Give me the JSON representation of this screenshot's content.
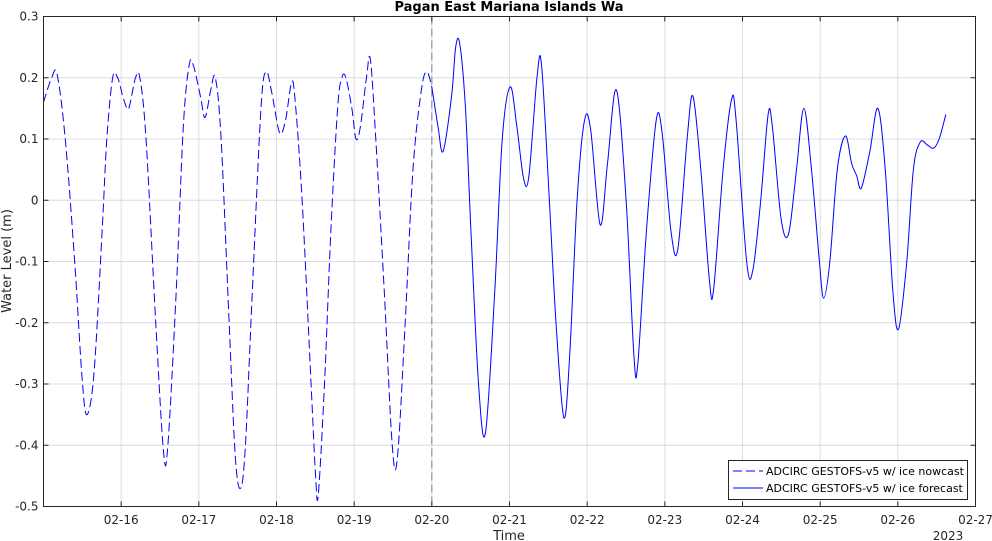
{
  "chart_data": {
    "type": "line",
    "title": "Pagan East Mariana Islands Wa",
    "xlabel": "Time",
    "ylabel": "Water Level (m)",
    "year_label": "2023",
    "xlim": [
      "2023-02-15 00:00",
      "2023-02-27 00:00"
    ],
    "ylim": [
      -0.5,
      0.3
    ],
    "x_tick_labels": [
      "02-16",
      "02-17",
      "02-18",
      "02-19",
      "02-20",
      "02-21",
      "02-22",
      "02-23",
      "02-24",
      "02-25",
      "02-26",
      "02-27"
    ],
    "y_tick_labels": [
      "-0.5",
      "-0.4",
      "-0.3",
      "-0.2",
      "-0.1",
      "0",
      "0.1",
      "0.2",
      "0.3"
    ],
    "grid": true,
    "legend_position": "bottom-right",
    "nowcast_end": "2023-02-20 00:00",
    "series": [
      {
        "name": "ADCIRC GESTOFS-v5 w/ ice nowcast",
        "color": "#0000ff",
        "line_style": "dashed",
        "points": [
          [
            "2023-02-15 00:00",
            0.16
          ],
          [
            "2023-02-15 02:31",
            0.2
          ],
          [
            "2023-02-15 04:14",
            0.205
          ],
          [
            "2023-02-15 06:43",
            0.1
          ],
          [
            "2023-02-15 09:38",
            -0.1
          ],
          [
            "2023-02-15 11:55",
            -0.29
          ],
          [
            "2023-02-15 13:26",
            -0.35
          ],
          [
            "2023-02-15 15:38",
            -0.28
          ],
          [
            "2023-02-15 18:07",
            -0.05
          ],
          [
            "2023-02-15 19:34",
            0.1
          ],
          [
            "2023-02-15 21:22",
            0.2
          ],
          [
            "2023-02-15 22:55",
            0.2
          ],
          [
            "2023-02-16 00:29",
            0.17
          ],
          [
            "2023-02-16 01:48",
            0.15
          ],
          [
            "2023-02-16 02:38",
            0.155
          ],
          [
            "2023-02-16 04:26",
            0.2
          ],
          [
            "2023-02-16 05:46",
            0.2
          ],
          [
            "2023-02-16 07:41",
            0.1
          ],
          [
            "2023-02-16 10:41",
            -0.2
          ],
          [
            "2023-02-16 13:05",
            -0.41
          ],
          [
            "2023-02-16 14:26",
            -0.4
          ],
          [
            "2023-02-16 17:00",
            -0.15
          ],
          [
            "2023-02-16 19:12",
            0.12
          ],
          [
            "2023-02-16 21:00",
            0.22
          ],
          [
            "2023-02-16 22:19",
            0.22
          ],
          [
            "2023-02-17 00:29",
            0.17
          ],
          [
            "2023-02-17 01:55",
            0.135
          ],
          [
            "2023-02-17 03:41",
            0.18
          ],
          [
            "2023-02-17 05:06",
            0.2
          ],
          [
            "2023-02-17 06:53",
            0.1
          ],
          [
            "2023-02-17 09:22",
            -0.2
          ],
          [
            "2023-02-17 11:17",
            -0.42
          ],
          [
            "2023-02-17 12:55",
            -0.47
          ],
          [
            "2023-02-17 14:24",
            -0.4
          ],
          [
            "2023-02-17 16:31",
            -0.15
          ],
          [
            "2023-02-17 19:12",
            0.15
          ],
          [
            "2023-02-17 20:47",
            0.21
          ],
          [
            "2023-02-17 22:34",
            0.175
          ],
          [
            "2023-02-18 00:58",
            0.11
          ],
          [
            "2023-02-18 02:46",
            0.13
          ],
          [
            "2023-02-18 04:34",
            0.19
          ],
          [
            "2023-02-18 05:38",
            0.17
          ],
          [
            "2023-02-18 07:55",
            0.0
          ],
          [
            "2023-02-18 10:41",
            -0.3
          ],
          [
            "2023-02-18 12:05",
            -0.45
          ],
          [
            "2023-02-18 12:55",
            -0.48
          ],
          [
            "2023-02-18 14:50",
            -0.3
          ],
          [
            "2023-02-18 16:48",
            -0.05
          ],
          [
            "2023-02-18 18:53",
            0.15
          ],
          [
            "2023-02-18 20:12",
            0.2
          ],
          [
            "2023-02-18 21:26",
            0.2
          ],
          [
            "2023-02-18 23:17",
            0.15
          ],
          [
            "2023-02-19 00:34",
            0.1
          ],
          [
            "2023-02-19 01:55",
            0.12
          ],
          [
            "2023-02-19 03:48",
            0.2
          ],
          [
            "2023-02-19 05:00",
            0.23
          ],
          [
            "2023-02-19 06:41",
            0.1
          ],
          [
            "2023-02-19 09:19",
            -0.15
          ],
          [
            "2023-02-19 11:46",
            -0.4
          ],
          [
            "2023-02-19 13:22",
            -0.42
          ],
          [
            "2023-02-19 15:46",
            -0.2
          ],
          [
            "2023-02-19 18:10",
            0.05
          ],
          [
            "2023-02-19 20:46",
            0.18
          ],
          [
            "2023-02-19 22:26",
            0.21
          ],
          [
            "2023-02-20 00:00",
            0.185
          ]
        ]
      },
      {
        "name": "ADCIRC GESTOFS-v5 w/ ice forecast",
        "color": "#0000ff",
        "line_style": "solid",
        "points": [
          [
            "2023-02-20 00:00",
            0.185
          ],
          [
            "2023-02-20 01:55",
            0.12
          ],
          [
            "2023-02-20 03:29",
            0.08
          ],
          [
            "2023-02-20 06:06",
            0.17
          ],
          [
            "2023-02-20 07:22",
            0.25
          ],
          [
            "2023-02-20 08:38",
            0.255
          ],
          [
            "2023-02-20 10:24",
            0.15
          ],
          [
            "2023-02-20 12:05",
            -0.05
          ],
          [
            "2023-02-20 14:26",
            -0.3
          ],
          [
            "2023-02-20 16:34",
            -0.38
          ],
          [
            "2023-02-20 19:26",
            -0.15
          ],
          [
            "2023-02-20 21:46",
            0.1
          ],
          [
            "2023-02-21 00:14",
            0.185
          ],
          [
            "2023-02-21 02:17",
            0.12
          ],
          [
            "2023-02-21 04:22",
            0.035
          ],
          [
            "2023-02-21 06:00",
            0.04
          ],
          [
            "2023-02-21 08:29",
            0.2
          ],
          [
            "2023-02-21 09:55",
            0.22
          ],
          [
            "2023-02-21 12:19",
            0.0
          ],
          [
            "2023-02-21 14:22",
            -0.2
          ],
          [
            "2023-02-21 16:48",
            -0.355
          ],
          [
            "2023-02-21 18:38",
            -0.25
          ],
          [
            "2023-02-21 20:53",
            0.0
          ],
          [
            "2023-02-21 23:10",
            0.13
          ],
          [
            "2023-02-22 01:05",
            0.115
          ],
          [
            "2023-02-22 04:01",
            -0.04
          ],
          [
            "2023-02-22 06:17",
            0.06
          ],
          [
            "2023-02-22 09:02",
            0.18
          ],
          [
            "2023-02-22 12:02",
            0.0
          ],
          [
            "2023-02-22 14:24",
            -0.25
          ],
          [
            "2023-02-22 15:36",
            -0.27
          ],
          [
            "2023-02-22 18:19",
            -0.05
          ],
          [
            "2023-02-22 21:19",
            0.13
          ],
          [
            "2023-02-22 23:10",
            0.11
          ],
          [
            "2023-02-23 01:53",
            -0.05
          ],
          [
            "2023-02-23 04:01",
            -0.08
          ],
          [
            "2023-02-23 06:53",
            0.1
          ],
          [
            "2023-02-23 08:41",
            0.17
          ],
          [
            "2023-02-23 11:07",
            0.05
          ],
          [
            "2023-02-23 13:46",
            -0.13
          ],
          [
            "2023-02-23 15:05",
            -0.145
          ],
          [
            "2023-02-23 18:00",
            0.05
          ],
          [
            "2023-02-23 20:38",
            0.165
          ],
          [
            "2023-02-23 22:02",
            0.13
          ],
          [
            "2023-02-24 01:17",
            -0.1
          ],
          [
            "2023-02-24 03:10",
            -0.115
          ],
          [
            "2023-02-24 05:38",
            0.0
          ],
          [
            "2023-02-24 07:55",
            0.14
          ],
          [
            "2023-02-24 09:14",
            0.12
          ],
          [
            "2023-02-24 11:55",
            -0.03
          ],
          [
            "2023-02-24 14:14",
            -0.055
          ],
          [
            "2023-02-24 16:41",
            0.05
          ],
          [
            "2023-02-24 18:58",
            0.15
          ],
          [
            "2023-02-24 21:19",
            0.05
          ],
          [
            "2023-02-24 23:46",
            -0.1
          ],
          [
            "2023-02-25 01:05",
            -0.16
          ],
          [
            "2023-02-25 03:00",
            -0.1
          ],
          [
            "2023-02-25 05:17",
            0.05
          ],
          [
            "2023-02-25 07:48",
            0.105
          ],
          [
            "2023-02-25 09:43",
            0.06
          ],
          [
            "2023-02-25 11:17",
            0.04
          ],
          [
            "2023-02-25 12:43",
            0.02
          ],
          [
            "2023-02-25 15:22",
            0.08
          ],
          [
            "2023-02-25 17:50",
            0.15
          ],
          [
            "2023-02-25 20:07",
            0.05
          ],
          [
            "2023-02-25 22:29",
            -0.15
          ],
          [
            "2023-02-26 00:14",
            -0.21
          ],
          [
            "2023-02-26 02:46",
            -0.1
          ],
          [
            "2023-02-26 04:48",
            0.05
          ],
          [
            "2023-02-26 06:55",
            0.095
          ],
          [
            "2023-02-26 09:10",
            0.09
          ],
          [
            "2023-02-26 11:02",
            0.085
          ],
          [
            "2023-02-26 12:46",
            0.1
          ],
          [
            "2023-02-26 14:50",
            0.14
          ]
        ]
      }
    ]
  }
}
